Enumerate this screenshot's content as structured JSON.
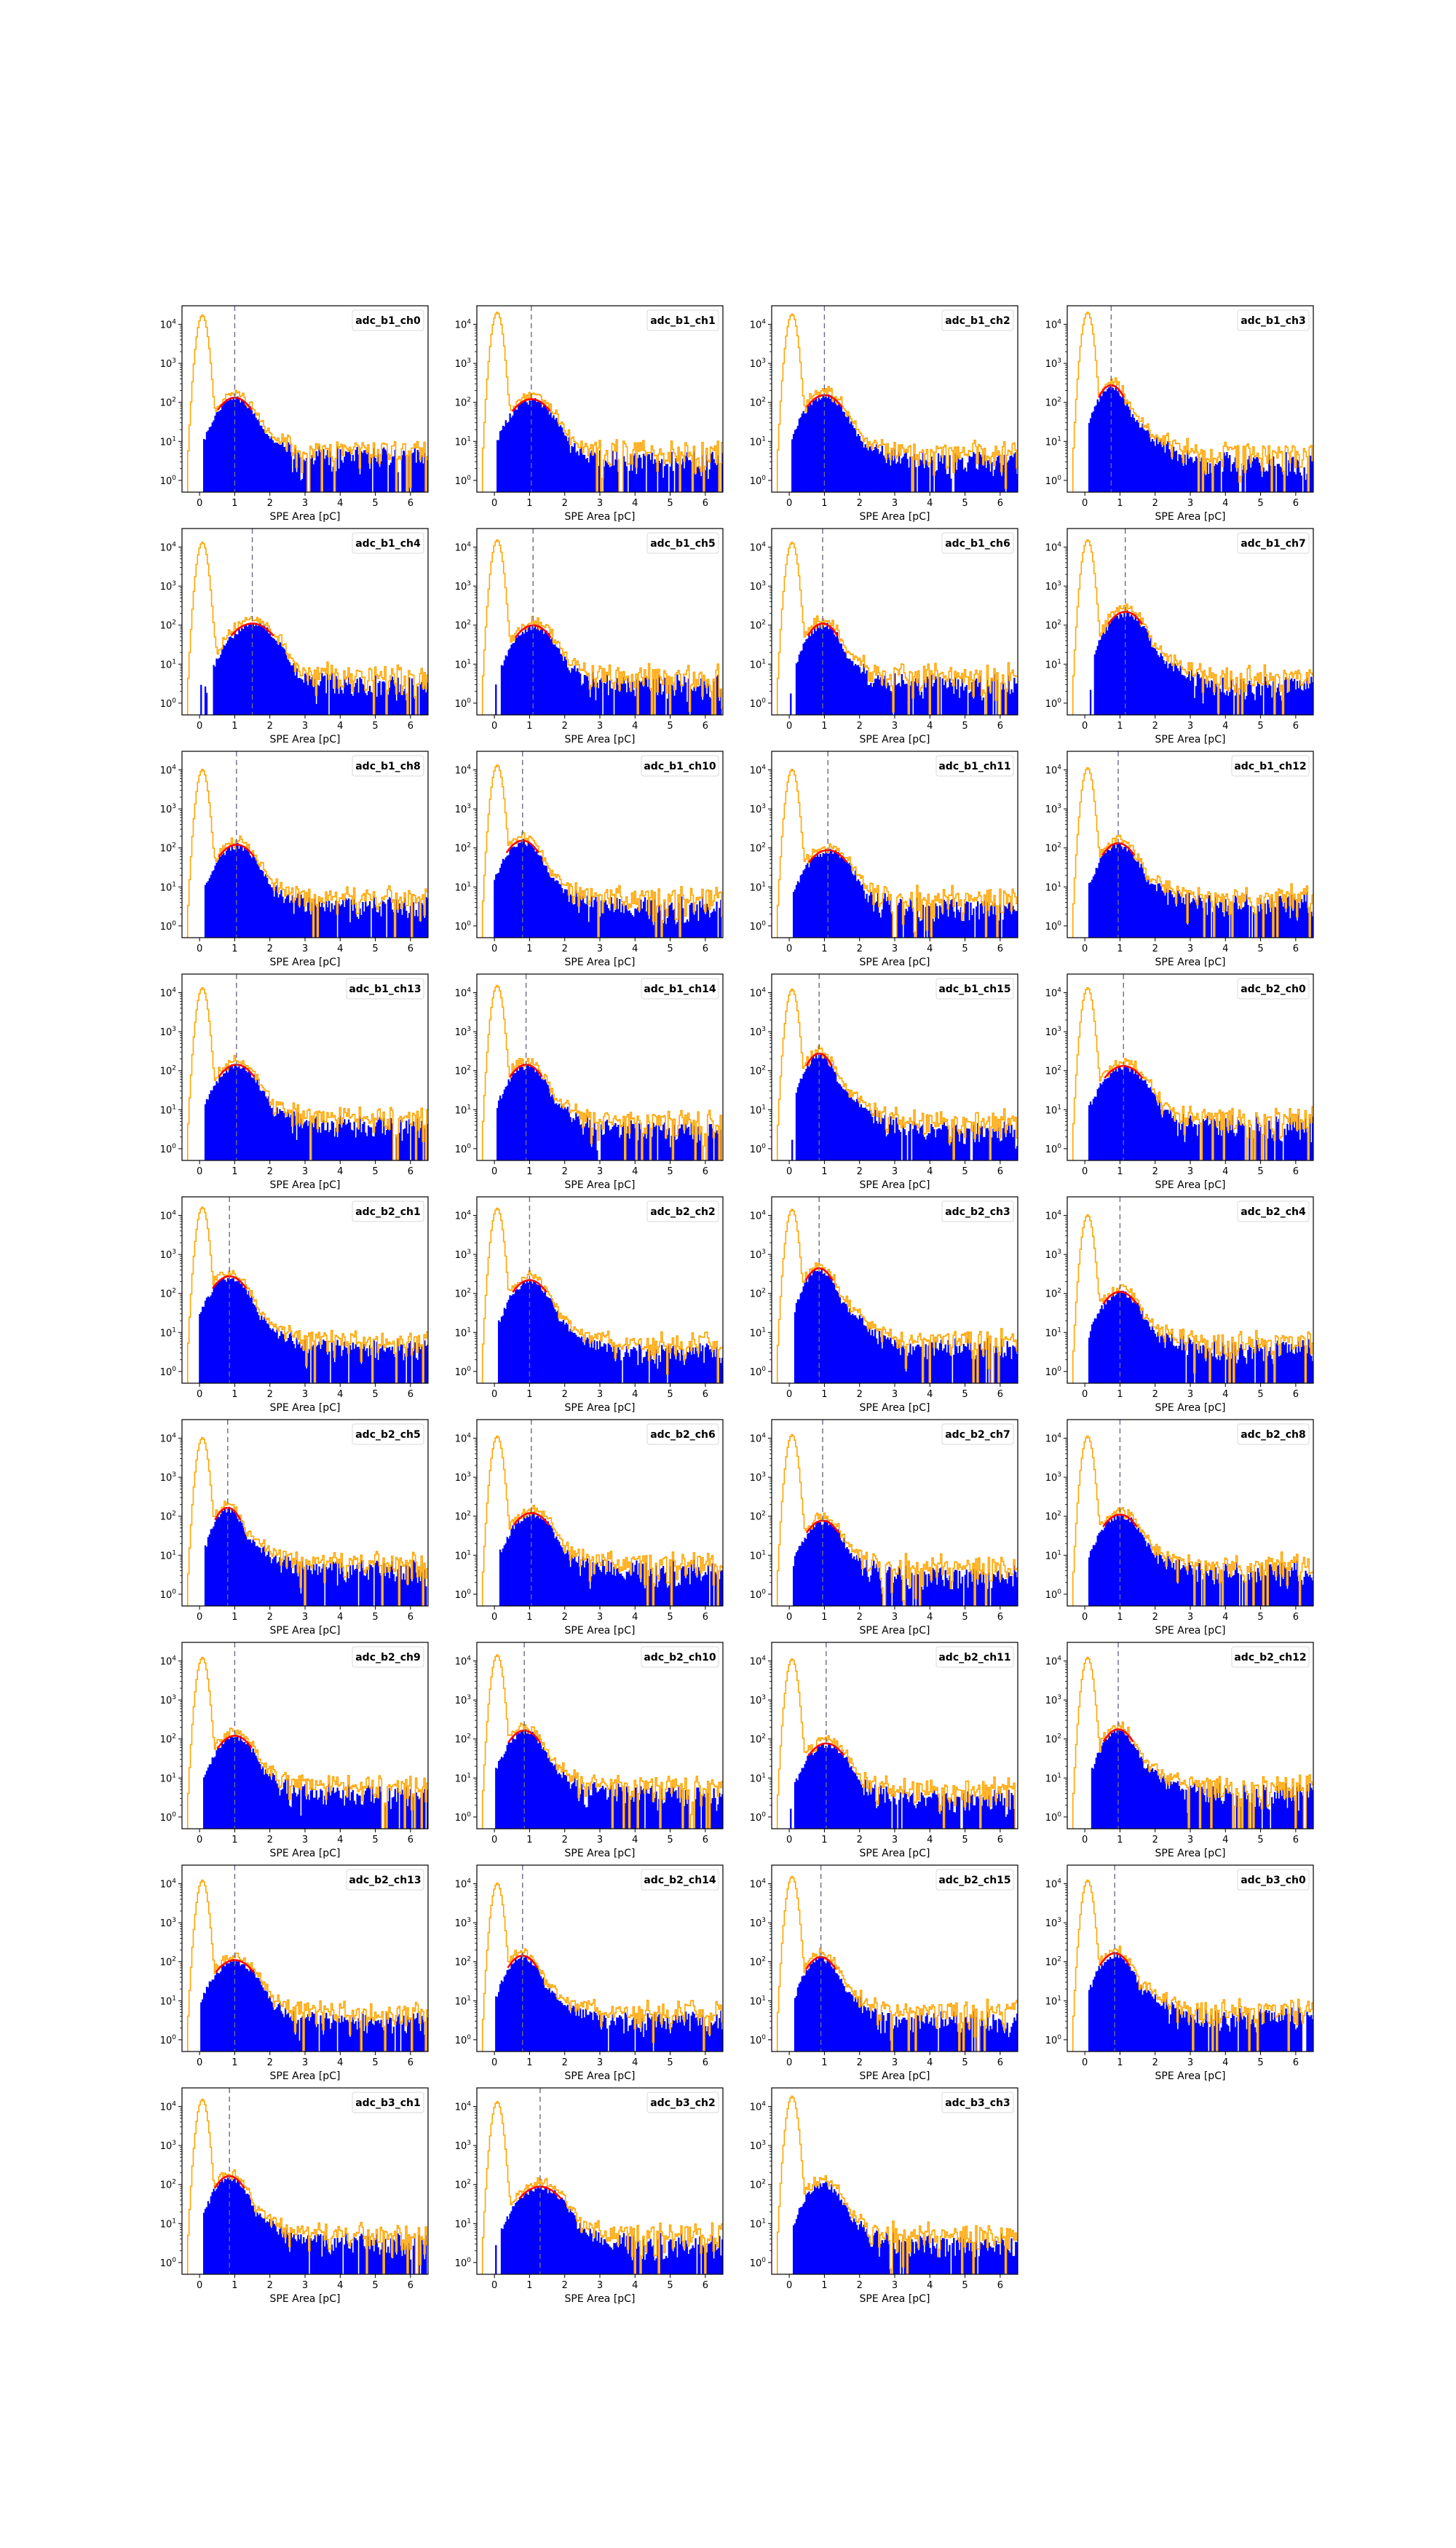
{
  "figure": {
    "xlabel": "SPE Area [pC]",
    "x_ticks": [
      "0",
      "1",
      "2",
      "3",
      "4",
      "5",
      "6"
    ],
    "y_ticks": [
      "10^0",
      "10^1",
      "10^2",
      "10^3",
      "10^4"
    ],
    "colors": {
      "data_hist": "#0000ff",
      "raw_hist": "#ffa500",
      "fit": "#ff0000",
      "peak_line": "#6b6b8a",
      "frame": "#000000"
    }
  },
  "chart_data": [
    {
      "type": "bar",
      "title": "adc_b1_ch0",
      "xlabel": "SPE Area [pC]",
      "xlim": [
        -0.5,
        6.5
      ],
      "ylim": [
        0.5,
        30000
      ],
      "log_y": true,
      "series": [
        {
          "name": "",
          "values": []
        },
        {
          "name": "",
          "values": []
        }
      ],
      "peak_x": 1.0,
      "peak_y": 120,
      "fit_sigma": 0.4,
      "tail_level": 4,
      "noise_peak": 17000
    },
    {
      "type": "bar",
      "title": "adc_b1_ch1",
      "xlabel": "SPE Area [pC]",
      "xlim": [
        -0.5,
        6.5
      ],
      "ylim": [
        0.5,
        30000
      ],
      "log_y": true,
      "peak_x": 1.05,
      "peak_y": 110,
      "fit_sigma": 0.45,
      "tail_level": 3,
      "noise_peak": 20000
    },
    {
      "type": "bar",
      "title": "adc_b1_ch2",
      "xlabel": "SPE Area [pC]",
      "xlim": [
        -0.5,
        6.5
      ],
      "ylim": [
        0.5,
        30000
      ],
      "log_y": true,
      "peak_x": 1.0,
      "peak_y": 140,
      "fit_sigma": 0.42,
      "tail_level": 3,
      "noise_peak": 18000
    },
    {
      "type": "bar",
      "title": "adc_b1_ch3",
      "xlabel": "SPE Area [pC]",
      "xlim": [
        -0.5,
        6.5
      ],
      "ylim": [
        0.5,
        30000
      ],
      "log_y": true,
      "peak_x": 0.75,
      "peak_y": 250,
      "fit_sigma": 0.3,
      "tail_level": 3,
      "noise_peak": 20000
    },
    {
      "type": "bar",
      "title": "adc_b1_ch4",
      "xlabel": "SPE Area [pC]",
      "xlim": [
        -0.5,
        6.5
      ],
      "ylim": [
        0.5,
        30000
      ],
      "log_y": true,
      "peak_x": 1.5,
      "peak_y": 100,
      "fit_sigma": 0.5,
      "tail_level": 3,
      "noise_peak": 13000
    },
    {
      "type": "bar",
      "title": "adc_b1_ch5",
      "xlabel": "SPE Area [pC]",
      "xlim": [
        -0.5,
        6.5
      ],
      "ylim": [
        0.5,
        30000
      ],
      "log_y": true,
      "peak_x": 1.1,
      "peak_y": 90,
      "fit_sigma": 0.42,
      "tail_level": 3,
      "noise_peak": 15000
    },
    {
      "type": "bar",
      "title": "adc_b1_ch6",
      "xlabel": "SPE Area [pC]",
      "xlim": [
        -0.5,
        6.5
      ],
      "ylim": [
        0.5,
        30000
      ],
      "log_y": true,
      "peak_x": 0.95,
      "peak_y": 100,
      "fit_sigma": 0.35,
      "tail_level": 3,
      "noise_peak": 13000
    },
    {
      "type": "bar",
      "title": "adc_b1_ch7",
      "xlabel": "SPE Area [pC]",
      "xlim": [
        -0.5,
        6.5
      ],
      "ylim": [
        0.5,
        30000
      ],
      "log_y": true,
      "peak_x": 1.15,
      "peak_y": 200,
      "fit_sigma": 0.4,
      "tail_level": 3,
      "noise_peak": 15000
    },
    {
      "type": "bar",
      "title": "adc_b1_ch8",
      "xlabel": "SPE Area [pC]",
      "xlim": [
        -0.5,
        6.5
      ],
      "ylim": [
        0.5,
        30000
      ],
      "log_y": true,
      "peak_x": 1.05,
      "peak_y": 110,
      "fit_sigma": 0.42,
      "tail_level": 3,
      "noise_peak": 10000
    },
    {
      "type": "bar",
      "title": "adc_b1_ch10",
      "xlabel": "SPE Area [pC]",
      "xlim": [
        -0.5,
        6.5
      ],
      "ylim": [
        0.5,
        30000
      ],
      "log_y": true,
      "peak_x": 0.8,
      "peak_y": 140,
      "fit_sigma": 0.38,
      "tail_level": 3,
      "noise_peak": 13000
    },
    {
      "type": "bar",
      "title": "adc_b1_ch11",
      "xlabel": "SPE Area [pC]",
      "xlim": [
        -0.5,
        6.5
      ],
      "ylim": [
        0.5,
        30000
      ],
      "log_y": true,
      "peak_x": 1.1,
      "peak_y": 80,
      "fit_sigma": 0.45,
      "tail_level": 3,
      "noise_peak": 10000
    },
    {
      "type": "bar",
      "title": "adc_b1_ch12",
      "xlabel": "SPE Area [pC]",
      "xlim": [
        -0.5,
        6.5
      ],
      "ylim": [
        0.5,
        30000
      ],
      "log_y": true,
      "peak_x": 0.95,
      "peak_y": 120,
      "fit_sigma": 0.38,
      "tail_level": 4,
      "noise_peak": 11000
    },
    {
      "type": "bar",
      "title": "adc_b1_ch13",
      "xlabel": "SPE Area [pC]",
      "xlim": [
        -0.5,
        6.5
      ],
      "ylim": [
        0.5,
        30000
      ],
      "log_y": true,
      "peak_x": 1.05,
      "peak_y": 130,
      "fit_sigma": 0.42,
      "tail_level": 4,
      "noise_peak": 13000
    },
    {
      "type": "bar",
      "title": "adc_b1_ch14",
      "xlabel": "SPE Area [pC]",
      "xlim": [
        -0.5,
        6.5
      ],
      "ylim": [
        0.5,
        30000
      ],
      "log_y": true,
      "peak_x": 0.9,
      "peak_y": 130,
      "fit_sigma": 0.38,
      "tail_level": 3,
      "noise_peak": 15000
    },
    {
      "type": "bar",
      "title": "adc_b1_ch15",
      "xlabel": "SPE Area [pC]",
      "xlim": [
        -0.5,
        6.5
      ],
      "ylim": [
        0.5,
        30000
      ],
      "log_y": true,
      "peak_x": 0.85,
      "peak_y": 250,
      "fit_sigma": 0.3,
      "tail_level": 3,
      "noise_peak": 12000
    },
    {
      "type": "bar",
      "title": "adc_b2_ch0",
      "xlabel": "SPE Area [pC]",
      "xlim": [
        -0.5,
        6.5
      ],
      "ylim": [
        0.5,
        30000
      ],
      "log_y": true,
      "peak_x": 1.1,
      "peak_y": 120,
      "fit_sigma": 0.45,
      "tail_level": 4,
      "noise_peak": 13000
    },
    {
      "type": "bar",
      "title": "adc_b2_ch1",
      "xlabel": "SPE Area [pC]",
      "xlim": [
        -0.5,
        6.5
      ],
      "ylim": [
        0.5,
        30000
      ],
      "log_y": true,
      "peak_x": 0.85,
      "peak_y": 250,
      "fit_sigma": 0.4,
      "tail_level": 4,
      "noise_peak": 16000
    },
    {
      "type": "bar",
      "title": "adc_b2_ch2",
      "xlabel": "SPE Area [pC]",
      "xlim": [
        -0.5,
        6.5
      ],
      "ylim": [
        0.5,
        30000
      ],
      "log_y": true,
      "peak_x": 1.0,
      "peak_y": 200,
      "fit_sigma": 0.4,
      "tail_level": 3,
      "noise_peak": 15000
    },
    {
      "type": "bar",
      "title": "adc_b2_ch3",
      "xlabel": "SPE Area [pC]",
      "xlim": [
        -0.5,
        6.5
      ],
      "ylim": [
        0.5,
        30000
      ],
      "log_y": true,
      "peak_x": 0.85,
      "peak_y": 400,
      "fit_sigma": 0.32,
      "tail_level": 4,
      "noise_peak": 14000
    },
    {
      "type": "bar",
      "title": "adc_b2_ch4",
      "xlabel": "SPE Area [pC]",
      "xlim": [
        -0.5,
        6.5
      ],
      "ylim": [
        0.5,
        30000
      ],
      "log_y": true,
      "peak_x": 1.0,
      "peak_y": 100,
      "fit_sigma": 0.4,
      "tail_level": 4,
      "noise_peak": 10000
    },
    {
      "type": "bar",
      "title": "adc_b2_ch5",
      "xlabel": "SPE Area [pC]",
      "xlim": [
        -0.5,
        6.5
      ],
      "ylim": [
        0.5,
        30000
      ],
      "log_y": true,
      "peak_x": 0.8,
      "peak_y": 150,
      "fit_sigma": 0.3,
      "tail_level": 4,
      "noise_peak": 10000
    },
    {
      "type": "bar",
      "title": "adc_b2_ch6",
      "xlabel": "SPE Area [pC]",
      "xlim": [
        -0.5,
        6.5
      ],
      "ylim": [
        0.5,
        30000
      ],
      "log_y": true,
      "peak_x": 1.05,
      "peak_y": 110,
      "fit_sigma": 0.42,
      "tail_level": 4,
      "noise_peak": 11000
    },
    {
      "type": "bar",
      "title": "adc_b2_ch7",
      "xlabel": "SPE Area [pC]",
      "xlim": [
        -0.5,
        6.5
      ],
      "ylim": [
        0.5,
        30000
      ],
      "log_y": true,
      "peak_x": 0.95,
      "peak_y": 70,
      "fit_sigma": 0.38,
      "tail_level": 3,
      "noise_peak": 12000
    },
    {
      "type": "bar",
      "title": "adc_b2_ch8",
      "xlabel": "SPE Area [pC]",
      "xlim": [
        -0.5,
        6.5
      ],
      "ylim": [
        0.5,
        30000
      ],
      "log_y": true,
      "peak_x": 1.0,
      "peak_y": 100,
      "fit_sigma": 0.4,
      "tail_level": 4,
      "noise_peak": 11000
    },
    {
      "type": "bar",
      "title": "adc_b2_ch9",
      "xlabel": "SPE Area [pC]",
      "xlim": [
        -0.5,
        6.5
      ],
      "ylim": [
        0.5,
        30000
      ],
      "log_y": true,
      "peak_x": 1.0,
      "peak_y": 110,
      "fit_sigma": 0.4,
      "tail_level": 4,
      "noise_peak": 12000
    },
    {
      "type": "bar",
      "title": "adc_b2_ch10",
      "xlabel": "SPE Area [pC]",
      "xlim": [
        -0.5,
        6.5
      ],
      "ylim": [
        0.5,
        30000
      ],
      "log_y": true,
      "peak_x": 0.85,
      "peak_y": 150,
      "fit_sigma": 0.38,
      "tail_level": 4,
      "noise_peak": 14000
    },
    {
      "type": "bar",
      "title": "adc_b2_ch11",
      "xlabel": "SPE Area [pC]",
      "xlim": [
        -0.5,
        6.5
      ],
      "ylim": [
        0.5,
        30000
      ],
      "log_y": true,
      "peak_x": 1.05,
      "peak_y": 70,
      "fit_sigma": 0.42,
      "tail_level": 3,
      "noise_peak": 11000
    },
    {
      "type": "bar",
      "title": "adc_b2_ch12",
      "xlabel": "SPE Area [pC]",
      "xlim": [
        -0.5,
        6.5
      ],
      "ylim": [
        0.5,
        30000
      ],
      "log_y": true,
      "peak_x": 0.95,
      "peak_y": 160,
      "fit_sigma": 0.35,
      "tail_level": 4,
      "noise_peak": 12000
    },
    {
      "type": "bar",
      "title": "adc_b2_ch13",
      "xlabel": "SPE Area [pC]",
      "xlim": [
        -0.5,
        6.5
      ],
      "ylim": [
        0.5,
        30000
      ],
      "log_y": true,
      "peak_x": 1.0,
      "peak_y": 100,
      "fit_sigma": 0.45,
      "tail_level": 3,
      "noise_peak": 12000
    },
    {
      "type": "bar",
      "title": "adc_b2_ch14",
      "xlabel": "SPE Area [pC]",
      "xlim": [
        -0.5,
        6.5
      ],
      "ylim": [
        0.5,
        30000
      ],
      "log_y": true,
      "peak_x": 0.8,
      "peak_y": 130,
      "fit_sigma": 0.35,
      "tail_level": 3,
      "noise_peak": 10000
    },
    {
      "type": "bar",
      "title": "adc_b2_ch15",
      "xlabel": "SPE Area [pC]",
      "xlim": [
        -0.5,
        6.5
      ],
      "ylim": [
        0.5,
        30000
      ],
      "log_y": true,
      "peak_x": 0.9,
      "peak_y": 120,
      "fit_sigma": 0.35,
      "tail_level": 3,
      "noise_peak": 15000
    },
    {
      "type": "bar",
      "title": "adc_b3_ch0",
      "xlabel": "SPE Area [pC]",
      "xlim": [
        -0.5,
        6.5
      ],
      "ylim": [
        0.5,
        30000
      ],
      "log_y": true,
      "peak_x": 0.85,
      "peak_y": 150,
      "fit_sigma": 0.35,
      "tail_level": 4,
      "noise_peak": 12000
    },
    {
      "type": "bar",
      "title": "adc_b3_ch1",
      "xlabel": "SPE Area [pC]",
      "xlim": [
        -0.5,
        6.5
      ],
      "ylim": [
        0.5,
        30000
      ],
      "log_y": true,
      "peak_x": 0.85,
      "peak_y": 150,
      "fit_sigma": 0.35,
      "tail_level": 3,
      "noise_peak": 15000
    },
    {
      "type": "bar",
      "title": "adc_b3_ch2",
      "xlabel": "SPE Area [pC]",
      "xlim": [
        -0.5,
        6.5
      ],
      "ylim": [
        0.5,
        30000
      ],
      "log_y": true,
      "peak_x": 1.3,
      "peak_y": 80,
      "fit_sigma": 0.5,
      "tail_level": 3,
      "noise_peak": 13000
    },
    {
      "type": "bar",
      "title": "adc_b3_ch3",
      "xlabel": "SPE Area [pC]",
      "xlim": [
        -0.5,
        6.5
      ],
      "ylim": [
        0.5,
        30000
      ],
      "log_y": true,
      "peak_x": 0.95,
      "peak_y": 100,
      "fit_sigma": 0.38,
      "tail_level": 3,
      "noise_peak": 18000,
      "no_fit": true
    }
  ]
}
